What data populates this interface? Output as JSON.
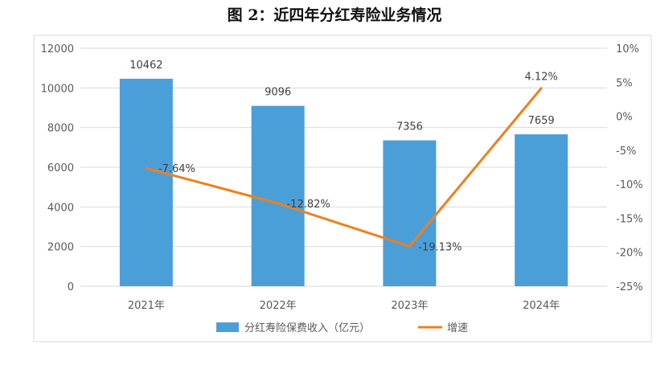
{
  "chart_data": {
    "type": "bar+line",
    "title": "图 2：近四年分红寿险业务情况",
    "categories": [
      "2021年",
      "2022年",
      "2023年",
      "2024年"
    ],
    "series": [
      {
        "name": "分红寿险保费收入（亿元）",
        "type": "bar",
        "axis": "left",
        "values": [
          10462,
          9096,
          7356,
          7659
        ],
        "color": "#4B9FD9"
      },
      {
        "name": "增速",
        "type": "line",
        "axis": "right",
        "values": [
          -7.64,
          -12.82,
          -19.13,
          4.12
        ],
        "labels": [
          "-7.64%",
          "-12.82%",
          "-19.13%",
          "4.12%"
        ],
        "color": "#F07F1E"
      }
    ],
    "ylim_left": [
      0,
      12000
    ],
    "yticks_left": [
      "0",
      "2000",
      "4000",
      "6000",
      "8000",
      "10000",
      "12000"
    ],
    "ylim_right": [
      -25,
      10
    ],
    "yticks_right": [
      "-25%",
      "-20%",
      "-15%",
      "-10%",
      "-5%",
      "0%",
      "5%",
      "10%"
    ],
    "grid": true,
    "legend": "bottom"
  }
}
